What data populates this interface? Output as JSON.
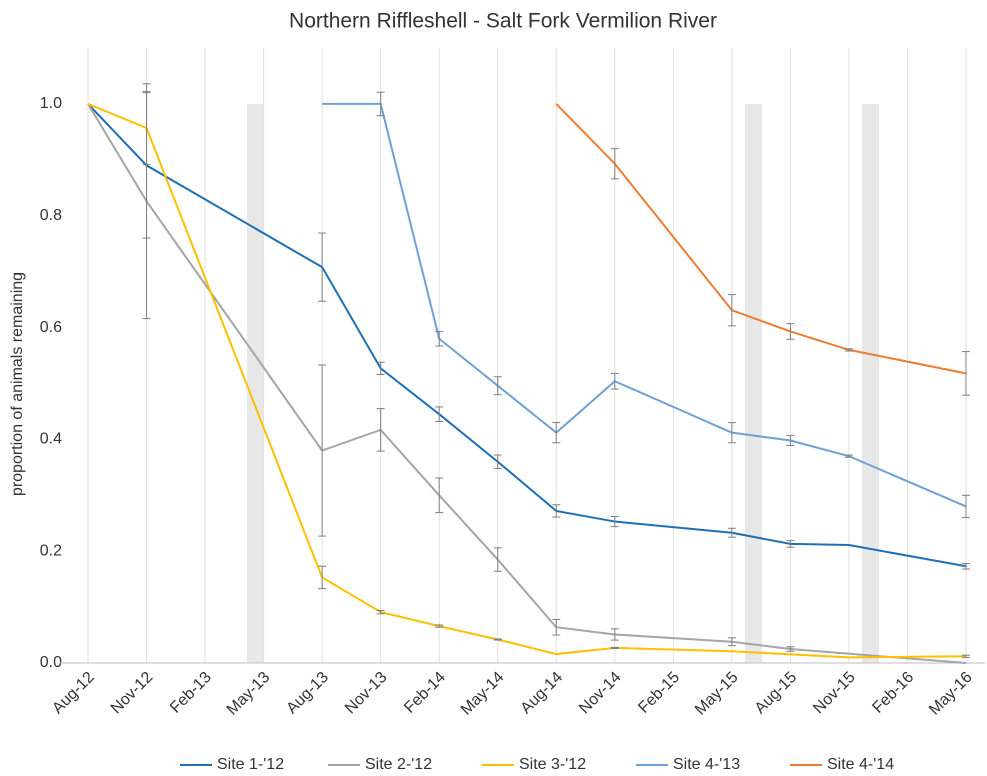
{
  "chart_data": {
    "type": "line",
    "title": "Northern Riffleshell - Salt Fork Vermilion River",
    "ylabel": "proportion of animals remaining",
    "categories": [
      "Aug-12",
      "Nov-12",
      "Feb-13",
      "May-13",
      "Aug-13",
      "Nov-13",
      "Feb-14",
      "May-14",
      "Aug-14",
      "Nov-14",
      "Feb-15",
      "May-15",
      "Aug-15",
      "Nov-15",
      "Feb-16",
      "May-16"
    ],
    "ylim": [
      0,
      1.1
    ],
    "yticks": [
      {
        "value": 0,
        "label": "0.0"
      },
      0.2,
      0.4,
      0.6,
      0.8,
      {
        "value": 1,
        "label": "1.0"
      }
    ],
    "grid": "vertical",
    "legend": "bottom",
    "series": [
      {
        "name": "Site 1-'12",
        "color": "#1f6fb5",
        "x": [
          "Aug-12",
          "Nov-12",
          "Aug-13",
          "Nov-13",
          "Feb-14",
          "May-14",
          "Aug-14",
          "Nov-14",
          "May-15",
          "Aug-15",
          "Nov-15",
          "May-16"
        ],
        "values": [
          1,
          0.89,
          0.708,
          0.527,
          0.445,
          0.36,
          0.272,
          0.253,
          0.233,
          0.213,
          0.211,
          0.173
        ],
        "errors": [
          0,
          0.13,
          0.061,
          0.011,
          0.013,
          0.012,
          0.011,
          0.009,
          0.008,
          0.006,
          0,
          0.005
        ]
      },
      {
        "name": "Site 2-'12",
        "color": "#a5a5a5",
        "x": [
          "Aug-12",
          "Nov-12",
          "Aug-13",
          "Nov-13",
          "Feb-14",
          "May-14",
          "Aug-14",
          "Nov-14",
          "May-15",
          "Aug-15",
          "May-16"
        ],
        "values": [
          1,
          0.826,
          0.38,
          0.417,
          0.3,
          0.185,
          0.064,
          0.051,
          0.038,
          0.025,
          0
        ],
        "errors": [
          0,
          0.21,
          0.153,
          0.038,
          0.031,
          0.021,
          0.014,
          0.01,
          0.007,
          0.004,
          0
        ]
      },
      {
        "name": "Site 3-'12",
        "color": "#ffc000",
        "x": [
          "Aug-12",
          "Nov-12",
          "Aug-13",
          "Nov-13",
          "Feb-14",
          "May-14",
          "Aug-14",
          "Nov-14",
          "May-15",
          "Nov-15",
          "May-16"
        ],
        "values": [
          1,
          0.957,
          0.153,
          0.091,
          0.066,
          0.042,
          0.016,
          0.027,
          0.021,
          0.01,
          0.012
        ],
        "errors": [
          0,
          0.065,
          0.02,
          0.003,
          0.002,
          0.001,
          0,
          0.001,
          0,
          0,
          0.002
        ]
      },
      {
        "name": "Site 4-'13",
        "color": "#6fa1d4",
        "x": [
          "Aug-13",
          "Nov-13",
          "Feb-14",
          "May-14",
          "Aug-14",
          "Nov-14",
          "May-15",
          "Aug-15",
          "Nov-15",
          "May-16"
        ],
        "values": [
          1,
          1,
          0.58,
          0.496,
          0.412,
          0.504,
          0.412,
          0.398,
          0.37,
          0.28
        ],
        "errors": [
          0,
          0.021,
          0.013,
          0.016,
          0.018,
          0.014,
          0.018,
          0.009,
          0.002,
          0.02
        ]
      },
      {
        "name": "Site 4-'14",
        "color": "#ed7d31",
        "x": [
          "Aug-14",
          "Nov-14",
          "May-15",
          "Aug-15",
          "Nov-15",
          "May-16"
        ],
        "values": [
          1,
          0.893,
          0.631,
          0.593,
          0.56,
          0.518
        ],
        "errors": [
          0,
          0.027,
          0.028,
          0.014,
          0.002,
          0.039
        ]
      }
    ]
  }
}
